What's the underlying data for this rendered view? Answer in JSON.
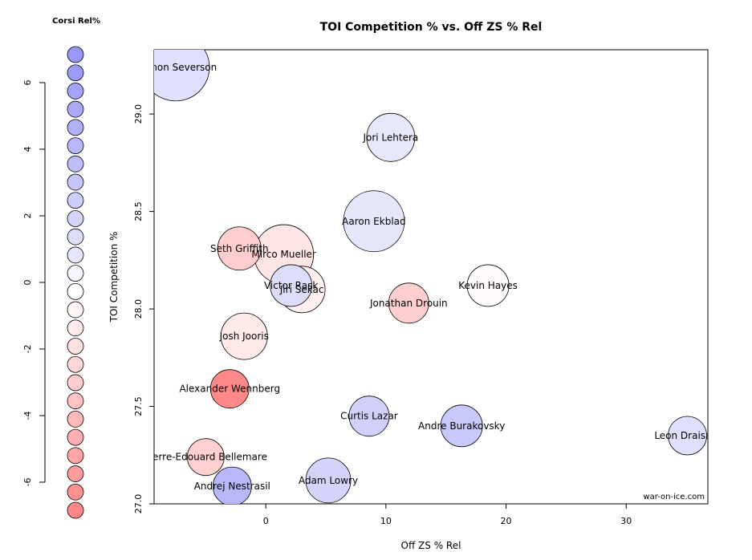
{
  "chart_data": {
    "type": "scatter",
    "title": "TOI Competition % vs. Off ZS % Rel",
    "xlabel": "Off ZS % Rel",
    "ylabel": "TOI Competition %",
    "xlim": [
      -9.3,
      36.8
    ],
    "ylim": [
      27.0,
      29.33
    ],
    "x_ticks": [
      "0",
      "10",
      "20",
      "30"
    ],
    "y_ticks": [
      "27.0",
      "27.5",
      "28.0",
      "28.5",
      "29.0"
    ],
    "watermark": "war-on-ice.com",
    "legend": {
      "title": "Corsi Rel%",
      "ticks": [
        "6",
        "4",
        "2",
        "0",
        "-2",
        "-4",
        "-6"
      ],
      "tick_values": [
        6,
        4,
        2,
        0,
        -2,
        -4,
        -6
      ],
      "range": [
        -6.7,
        7.0
      ],
      "swatches": [
        "#9898f8",
        "#9b9bf8",
        "#a2a2f8",
        "#a9a9f8",
        "#b0b0f9",
        "#b7b7f9",
        "#bebef9",
        "#c6c6fa",
        "#cdcdfa",
        "#d4d4fb",
        "#dcdcfb",
        "#e6e6fc",
        "#f6f6fe",
        "#ffffff",
        "#fff5f5",
        "#ffebeb",
        "#ffe1e1",
        "#ffd7d7",
        "#ffcdcd",
        "#ffc3c3",
        "#ffb9b9",
        "#ffafaf",
        "#ffa5a5",
        "#ff9b9b",
        "#ff9191",
        "#ff8787"
      ]
    },
    "points": [
      {
        "name": "Damon Severson",
        "x": -7.5,
        "y": 29.24,
        "size": 42,
        "color": "#e0e0fc"
      },
      {
        "name": "Jori Lehtera",
        "x": 10.4,
        "y": 28.88,
        "size": 30,
        "color": "#e8e8fc"
      },
      {
        "name": "Aaron Ekblad",
        "x": 9.0,
        "y": 28.45,
        "size": 38,
        "color": "#e6e6fc"
      },
      {
        "name": "Seth Griffith",
        "x": -2.2,
        "y": 28.31,
        "size": 27,
        "color": "#ffcdcd"
      },
      {
        "name": "Mirco Mueller",
        "x": 1.5,
        "y": 28.28,
        "size": 37,
        "color": "#ffe6e6"
      },
      {
        "name": "Victor Rask",
        "x": 2.1,
        "y": 28.12,
        "size": 26,
        "color": "#dcdcfb"
      },
      {
        "name": "Jiri Sekac",
        "x": 3.0,
        "y": 28.1,
        "size": 29,
        "color": "#fff0f0"
      },
      {
        "name": "Kevin Hayes",
        "x": 18.5,
        "y": 28.12,
        "size": 26,
        "color": "#fffafa"
      },
      {
        "name": "Jonathan Drouin",
        "x": 11.9,
        "y": 28.03,
        "size": 25,
        "color": "#ffcfcf"
      },
      {
        "name": "Josh Jooris",
        "x": -1.8,
        "y": 27.86,
        "size": 29,
        "color": "#ffeaea"
      },
      {
        "name": "Alexander Wennberg",
        "x": -3.0,
        "y": 27.59,
        "size": 24,
        "color": "#ff8888"
      },
      {
        "name": "Curtis Lazar",
        "x": 8.6,
        "y": 27.45,
        "size": 25,
        "color": "#d0d0fa"
      },
      {
        "name": "Andre Burakovsky",
        "x": 16.3,
        "y": 27.4,
        "size": 26,
        "color": "#c8c8fa"
      },
      {
        "name": "Leon Draisaitl",
        "x": 35.1,
        "y": 27.35,
        "size": 24,
        "color": "#e0e0fc"
      },
      {
        "name": "Pierre-Edouard Bellemare",
        "x": -5.0,
        "y": 27.24,
        "size": 23,
        "color": "#ffd0d0"
      },
      {
        "name": "Adam Lowry",
        "x": 5.2,
        "y": 27.12,
        "size": 28,
        "color": "#d4d4fb"
      },
      {
        "name": "Andrej Nestrasil",
        "x": -2.8,
        "y": 27.09,
        "size": 24,
        "color": "#b8b8f9"
      }
    ]
  }
}
